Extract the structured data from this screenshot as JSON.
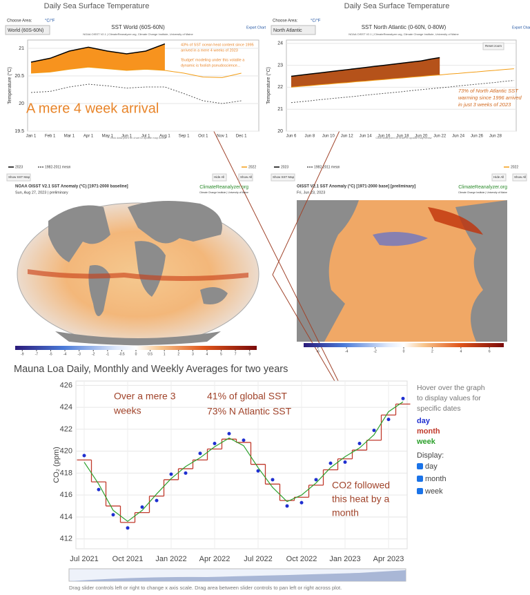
{
  "chart_data": [
    {
      "type": "line",
      "page_title": "Daily Sea Surface Temperature",
      "choose_label": "Choose Area:",
      "unit_toggle": "°C/°F",
      "area": "World (60S-60N)",
      "title": "SST World (60S-60N)",
      "subtitle": "NOAA OISST V2.1 | ClimateReanalyzer.org, Climate Change Institute, University of Maine",
      "export": "Export Chart",
      "y_label": "Temperature (°C)",
      "hint": "Click data point on chart to update map below",
      "buttons": [
        "Show SST Map",
        "Hide All",
        "Show All"
      ],
      "annotations": [
        "43% of SST ocean heat content since 1995",
        "arrived in a mere 4 weeks of 2023",
        "'Budget' modeling under this volatile a",
        "dynamic is foolish pseudoscience...",
        "A mere 4 week arrival"
      ],
      "categories": [
        "Jan 1",
        "Feb 1",
        "Mar 1",
        "Apr 1",
        "May 1",
        "Jun 1",
        "Jul 1",
        "Aug 1",
        "Sep 1",
        "Oct 1",
        "Nov 1",
        "Dec 1"
      ],
      "ylim": [
        19.5,
        21.15
      ],
      "yticks": [
        19.5,
        20,
        20.5,
        21
      ],
      "grid": true,
      "series": [
        {
          "name": "2023",
          "color": "#000000",
          "area_color": "#f7931e",
          "area_to": 2,
          "values": [
            20.75,
            20.82,
            20.95,
            21.02,
            20.95,
            20.9,
            20.95,
            21.08,
            null,
            null,
            null,
            null
          ]
        },
        {
          "name": "1982-2011 mean",
          "color": "#555555",
          "dash": true,
          "values": [
            20.2,
            20.22,
            20.3,
            20.35,
            20.32,
            20.28,
            20.3,
            20.3,
            20.18,
            20.05,
            20.0,
            20.05
          ]
        },
        {
          "name": "2022",
          "color": "#f39c12",
          "values": [
            20.55,
            20.57,
            20.62,
            20.66,
            20.63,
            20.6,
            20.62,
            20.6,
            20.55,
            20.48,
            20.47,
            20.55
          ]
        }
      ]
    },
    {
      "type": "line",
      "page_title": "Daily Sea Surface Temperature",
      "choose_label": "Choose Area:",
      "unit_toggle": "°C/°F",
      "area": "North Atlantic",
      "title": "SST North Atlantic (0-60N, 0-80W)",
      "subtitle": "NOAA OISST V2.1 | ClimateReanalyzer.org, Climate Change Institute, University of Maine",
      "export": "Export Chart",
      "y_label": "Temperature (°C)",
      "hint": "Click data point on chart to update map below",
      "buttons": [
        "Show SST Map",
        "Hide All",
        "Show All"
      ],
      "zoom": "Reset zoom",
      "annotations": [
        "73% of North Atlantic SST",
        "warming since 1996 arrived",
        "in just 3 weeks of 2023"
      ],
      "categories": [
        "Jun 6",
        null,
        "Jun 8",
        null,
        "Jun 10",
        null,
        "Jun 12",
        null,
        "Jun 14",
        null,
        "Jun 16",
        null,
        "Jun 18",
        null,
        "Jun 20",
        null,
        "Jun 22",
        null,
        "Jun 24",
        null,
        "Jun 26",
        null,
        "Jun 28",
        null,
        null
      ],
      "ylim": [
        20,
        24.15
      ],
      "yticks": [
        20,
        21,
        22,
        23,
        24
      ],
      "grid": true,
      "series": [
        {
          "name": "2023",
          "color": "#000000",
          "area_color": "#b5521a",
          "area_to": 2,
          "values": [
            22.5,
            22.55,
            22.6,
            22.65,
            22.7,
            22.75,
            22.8,
            22.85,
            22.9,
            22.95,
            23.0,
            23.05,
            23.1,
            23.15,
            23.2,
            23.28,
            23.35,
            null,
            null,
            null,
            null,
            null,
            null,
            null,
            null
          ]
        },
        {
          "name": "1982-2011 mean",
          "color": "#555555",
          "dash": true,
          "values": [
            21.3,
            21.34,
            21.38,
            21.43,
            21.47,
            21.51,
            21.55,
            21.59,
            21.64,
            21.68,
            21.72,
            21.76,
            21.8,
            21.85,
            21.89,
            21.93,
            21.97,
            22.01,
            22.06,
            22.1,
            22.14,
            22.18,
            22.22,
            22.27,
            22.31
          ]
        },
        {
          "name": "2022",
          "color": "#f39c12",
          "values": [
            22.0,
            22.04,
            22.07,
            22.11,
            22.14,
            22.18,
            22.21,
            22.25,
            22.28,
            22.32,
            22.35,
            22.39,
            22.42,
            22.46,
            22.49,
            22.53,
            22.56,
            22.6,
            22.63,
            22.67,
            22.7,
            22.74,
            22.77,
            22.81,
            22.84
          ]
        }
      ]
    },
    {
      "type": "line",
      "title": "Mauna Loa Daily, Monthly and Weekly Averages for two years",
      "y_label": "CO₂ (ppm)",
      "hover": [
        "Hover over the graph",
        "to display values for",
        "specific dates"
      ],
      "display_label": "Display:",
      "caption": "Drag slider controls left or right to change x axis scale. Drag area between slider controls to pan left or right across plot.",
      "annotations": [
        "Over a mere 3",
        "weeks",
        "41% of global SST",
        "73% N Atlantic SST",
        "CO2 followed",
        "this heat by a",
        "month"
      ],
      "categories": [
        "Jul 2021",
        null,
        null,
        "Oct 2021",
        null,
        null,
        "Jan 2022",
        null,
        null,
        "Apr 2022",
        null,
        null,
        "Jul 2022",
        null,
        null,
        "Oct 2022",
        null,
        null,
        "Jan 2023",
        null,
        null,
        "Apr 2023",
        null
      ],
      "ylim": [
        411.1,
        426.4
      ],
      "yticks": [
        412,
        414,
        416,
        418,
        420,
        422,
        424,
        426
      ],
      "grid": true,
      "series": [
        {
          "name": "day",
          "color": "#1f2fd0",
          "style": "points",
          "values": [
            419.6,
            416.5,
            414.2,
            413.0,
            414.9,
            415.5,
            417.9,
            418.0,
            419.8,
            420.7,
            421.6,
            421.0,
            418.2,
            417.4,
            415.0,
            415.3,
            417.4,
            418.9,
            419.0,
            420.7,
            421.9,
            422.9,
            424.8
          ]
        },
        {
          "name": "month",
          "color": "#c0392b",
          "style": "step",
          "values": [
            419.2,
            417.2,
            415,
            413.5,
            414.4,
            415.9,
            417.4,
            418.4,
            419.2,
            420.2,
            421.1,
            420.8,
            418.8,
            417,
            415.5,
            415.8,
            416.9,
            418.3,
            419.3,
            420.1,
            421,
            423.3,
            424.3
          ]
        },
        {
          "name": "week",
          "color": "#2ca02c",
          "values": [
            419.0,
            417.0,
            414.6,
            413.6,
            414.6,
            416.1,
            417.5,
            418.6,
            419.4,
            420.4,
            421.2,
            420.5,
            418.5,
            416.7,
            415.4,
            416.0,
            417.1,
            418.5,
            419.5,
            420.3,
            421.5,
            423.6,
            424.5
          ]
        }
      ]
    }
  ],
  "maps": [
    {
      "title": "NOAA OISST V2.1 SST Anomaly (°C) [1971-2000 baseline]",
      "date": "Sun, Aug 27, 2023 | preliminary",
      "source": "ClimateReanalyzer.org",
      "institute": "Climate Change Institute | University of Maine",
      "colorbar_ticks": [
        -9,
        -7,
        -5,
        -4,
        -3,
        -2,
        -1,
        -0.5,
        0,
        0.5,
        1,
        2,
        3,
        4,
        5,
        7,
        9
      ]
    },
    {
      "title": "OISST V2.1 SST Anomaly (°C) [1971-2000 base] [preliminary]",
      "date": "Fri, Jun 23, 2023",
      "source": "ClimateReanalyzer.org",
      "institute": "Climate Change Institute | University of Maine",
      "colorbar_ticks": [
        -6,
        -4,
        -2,
        0,
        2,
        4,
        6
      ]
    }
  ]
}
